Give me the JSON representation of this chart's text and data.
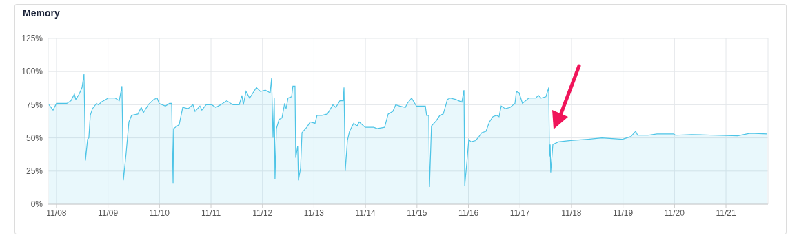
{
  "chart_data": {
    "type": "area",
    "title": "Memory",
    "color": "#4dc4e6",
    "grid": true,
    "xlim": [
      "--11-07T20:10",
      "--11-21T19:35"
    ],
    "xticks": [
      {
        "value": "--11-08",
        "label": "11/08"
      },
      {
        "value": "--11-09",
        "label": "11/09"
      },
      {
        "value": "--11-10",
        "label": "11/10"
      },
      {
        "value": "--11-11",
        "label": "11/11"
      },
      {
        "value": "--11-12",
        "label": "11/12"
      },
      {
        "value": "--11-13",
        "label": "11/13"
      },
      {
        "value": "--11-14",
        "label": "11/14"
      },
      {
        "value": "--11-15",
        "label": "11/15"
      },
      {
        "value": "--11-16",
        "label": "11/16"
      },
      {
        "value": "--11-17",
        "label": "11/17"
      },
      {
        "value": "--11-18",
        "label": "11/18"
      },
      {
        "value": "--11-19",
        "label": "11/19"
      },
      {
        "value": "--11-20",
        "label": "11/20"
      },
      {
        "value": "--11-21",
        "label": "11/21"
      }
    ],
    "ylim": [
      0,
      125
    ],
    "yticks": [
      {
        "value": 0,
        "label": "0%"
      },
      {
        "value": 25,
        "label": "25%"
      },
      {
        "value": 50,
        "label": "50%"
      },
      {
        "value": 75,
        "label": "75%"
      },
      {
        "value": 100,
        "label": "100%"
      },
      {
        "value": 125,
        "label": "125%"
      }
    ],
    "x": [
      "--11-07T20:30",
      "--11-07T22:25",
      "--11-08T00:00",
      "--11-08T04:50",
      "--11-08T06:45",
      "--11-08T08:20",
      "--11-08T09:00",
      "--11-08T10:35",
      "--11-08T11:55",
      "--11-08T12:50",
      "--11-08T13:30",
      "--11-08T14:30",
      "--11-08T15:05",
      "--11-08T15:45",
      "--11-08T16:45",
      "--11-08T18:40",
      "--11-08T19:35",
      "--11-08T20:55",
      "--11-09T00:05",
      "--11-09T03:20",
      "--11-09T05:15",
      "--11-09T06:30",
      "--11-09T07:10",
      "--11-09T08:25",
      "--11-09T09:45",
      "--11-09T11:00",
      "--11-09T13:55",
      "--11-09T15:30",
      "--11-09T16:30",
      "--11-09T18:45",
      "--11-09T21:20",
      "--11-09T22:55",
      "--11-09T23:50",
      "--11-10T02:45",
      "--11-10T04:40",
      "--11-10T05:40",
      "--11-10T06:20",
      "--11-10T06:35",
      "--11-10T09:10",
      "--11-10T10:50",
      "--11-10T13:20",
      "--11-10T15:35",
      "--11-10T16:35",
      "--11-10T18:50",
      "--11-10T19:45",
      "--11-10T21:45",
      "--11-11T00:20",
      "--11-11T02:15",
      "--11-11T04:30",
      "--11-11T07:20",
      "--11-11T10:15",
      "--11-11T13:10",
      "--11-11T14:25",
      "--11-11T15:05",
      "--11-11T16:20",
      "--11-11T17:20",
      "--11-11T18:00",
      "--11-11T21:10",
      "--11-11T23:05",
      "--11-12T01:20",
      "--11-12T03:35",
      "--11-12T04:15",
      "--11-12T04:55",
      "--11-12T05:30",
      "--11-12T05:50",
      "--11-12T06:30",
      "--11-12T07:45",
      "--11-12T09:05",
      "--11-12T10:20",
      "--11-12T11:00",
      "--11-12T11:55",
      "--11-12T13:35",
      "--11-12T14:10",
      "--11-12T15:10",
      "--11-12T15:30",
      "--11-12T16:25",
      "--11-12T16:45",
      "--11-12T17:45",
      "--11-12T18:25",
      "--11-12T20:40",
      "--11-12T22:15",
      "--11-13T00:30",
      "--11-13T01:25",
      "--11-13T03:40",
      "--11-13T06:15",
      "--11-13T08:50",
      "--11-13T10:10",
      "--11-13T12:05",
      "--11-13T13:40",
      "--11-13T14:00",
      "--11-13T14:35",
      "--11-13T15:35",
      "--11-13T16:35",
      "--11-13T18:30",
      "--11-13T20:05",
      "--11-13T21:05",
      "--11-13T23:55",
      "--11-14T03:50",
      "--11-14T05:25",
      "--11-14T08:55",
      "--11-14T10:35",
      "--11-14T12:45",
      "--11-14T14:05",
      "--11-14T16:00",
      "--11-14T18:35",
      "--11-14T19:30",
      "--11-14T21:30",
      "--11-14T23:45",
      "--11-15T03:55",
      "--11-15T04:30",
      "--11-15T05:30",
      "--11-15T05:50",
      "--11-15T06:45",
      "--11-15T09:00",
      "--11-15T10:40",
      "--11-15T12:15",
      "--11-15T13:30",
      "--11-15T14:10",
      "--11-15T15:30",
      "--11-15T18:00",
      "--11-15T20:55",
      "--11-15T21:55",
      "--11-15T22:15",
      "--11-15T23:10",
      "--11-16T00:10",
      "--11-16T01:05",
      "--11-16T03:20",
      "--11-16T04:55",
      "--11-16T06:15",
      "--11-16T08:10",
      "--11-16T09:45",
      "--11-16T11:25",
      "--11-16T13:00",
      "--11-16T14:15",
      "--11-16T15:15",
      "--11-16T17:10",
      "--11-16T19:25",
      "--11-16T21:40",
      "--11-16T22:20",
      "--11-16T23:35",
      "--11-17T01:10",
      "--11-17T04:05",
      "--11-17T07:20",
      "--11-17T08:35",
      "--11-17T09:50",
      "--11-17T12:05",
      "--11-17T13:25",
      "--11-17T13:45",
      "--11-17T14:05",
      "--11-17T14:20",
      "--11-17T15:20",
      "--11-17T17:55",
      "--11-17T23:40",
      "--11-18T07:45",
      "--11-18T14:10",
      "--11-18T23:45",
      "--11-19T03:40",
      "--11-19T05:55",
      "--11-19T06:50",
      "--11-19T11:40",
      "--11-19T15:50",
      "--11-19T23:35",
      "--11-20T00:30",
      "--11-20T07:55",
      "--11-20T18:50",
      "--11-21T05:25",
      "--11-21T11:15",
      "--11-21T19:15"
    ],
    "values": [
      75,
      71,
      76,
      76,
      78,
      83,
      79,
      83,
      88,
      98,
      33,
      49,
      50,
      67,
      72,
      76,
      75,
      77,
      80,
      80,
      78,
      89,
      18,
      38,
      62,
      67,
      68,
      73,
      69,
      75,
      79,
      80,
      76,
      74,
      76,
      76,
      16,
      57,
      60,
      73,
      72,
      75,
      70,
      74,
      71,
      75,
      75,
      73,
      75,
      78,
      75,
      75,
      82,
      75,
      85,
      82,
      80,
      88,
      85,
      86,
      84,
      95,
      50,
      80,
      19,
      57,
      64,
      65,
      76,
      72,
      80,
      81,
      89,
      89,
      35,
      44,
      18,
      27,
      54,
      58,
      62,
      61,
      67,
      67,
      68,
      75,
      73,
      78,
      78,
      88,
      25,
      48,
      55,
      61,
      59,
      62,
      58,
      58,
      57,
      58,
      68,
      70,
      75,
      74,
      73,
      76,
      80,
      74,
      74,
      67,
      67,
      13,
      59,
      63,
      67,
      68,
      75,
      79,
      80,
      79,
      77,
      86,
      14,
      30,
      49,
      47,
      48,
      51,
      54,
      55,
      62,
      66,
      67,
      66,
      74,
      72,
      73,
      76,
      85,
      84,
      76,
      80,
      80,
      82,
      80,
      81,
      88,
      36,
      45,
      24,
      45,
      47,
      48,
      49,
      50,
      49,
      51,
      55,
      52,
      52,
      53,
      53,
      52,
      52.5,
      52,
      51.5,
      53.5,
      53
    ]
  }
}
